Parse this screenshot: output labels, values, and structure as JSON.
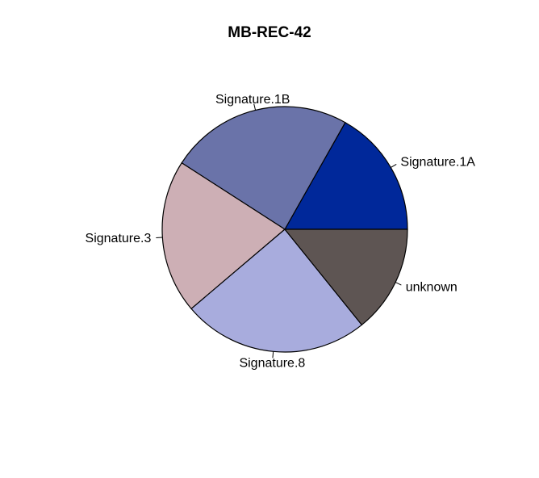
{
  "chart_data": {
    "type": "pie",
    "title": "MB-REC-42",
    "start_angle_deg": 0,
    "direction": "counterclockwise",
    "slices": [
      {
        "label": "Signature.1A",
        "value": 0.168,
        "color": "#00289A"
      },
      {
        "label": "Signature.1B",
        "value": 0.241,
        "color": "#6A73A9"
      },
      {
        "label": "Signature.3",
        "value": 0.203,
        "color": "#CDAFB5"
      },
      {
        "label": "Signature.8",
        "value": 0.246,
        "color": "#A8ACDD"
      },
      {
        "label": "unknown",
        "value": 0.142,
        "color": "#5E5553"
      }
    ]
  }
}
